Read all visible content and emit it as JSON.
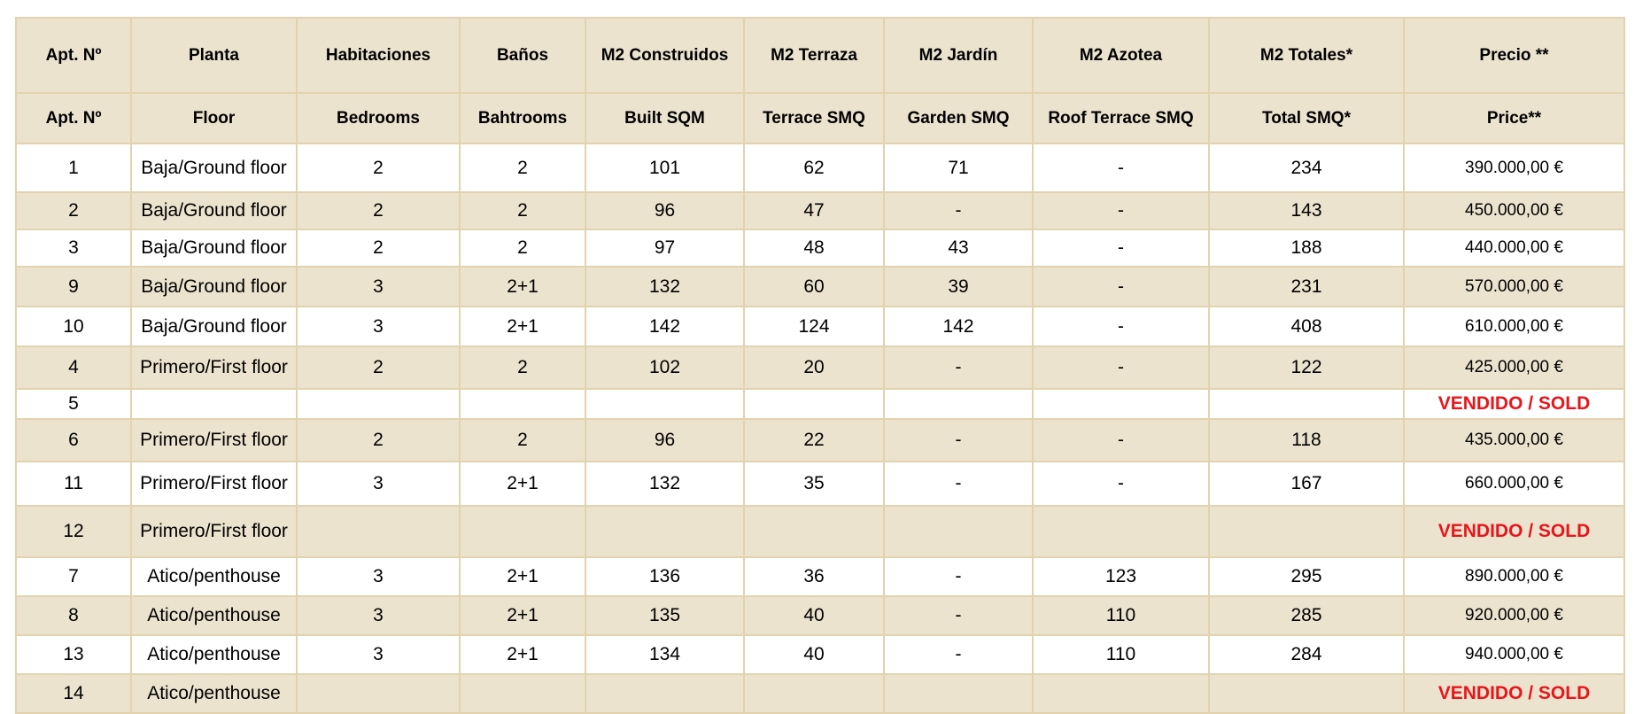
{
  "headers_es": [
    "Apt. Nº",
    "Planta",
    "Habitaciones",
    "Baños",
    "M2 Construidos",
    "M2 Terraza",
    "M2 Jardín",
    "M2 Azotea",
    "M2 Totales*",
    "Precio **"
  ],
  "headers_en": [
    "Apt. Nº",
    "Floor",
    "Bedrooms",
    "Bahtrooms",
    "Built SQM",
    "Terrace SMQ",
    "Garden SMQ",
    "Roof Terrace SMQ",
    "Total SMQ*",
    "Price**"
  ],
  "rows": [
    {
      "apt": "1",
      "floor": "Baja/Ground floor",
      "bedrooms": "2",
      "bathrooms": "2",
      "built": "101",
      "terrace": "62",
      "garden": "71",
      "roof": "-",
      "total": "234",
      "price": "390.000,00 €"
    },
    {
      "apt": "2",
      "floor": "Baja/Ground floor",
      "bedrooms": "2",
      "bathrooms": "2",
      "built": "96",
      "terrace": "47",
      "garden": "-",
      "roof": "-",
      "total": "143",
      "price": "450.000,00 €"
    },
    {
      "apt": "3",
      "floor": "Baja/Ground floor",
      "bedrooms": "2",
      "bathrooms": "2",
      "built": "97",
      "terrace": "48",
      "garden": "43",
      "roof": "-",
      "total": "188",
      "price": "440.000,00 €"
    },
    {
      "apt": "9",
      "floor": "Baja/Ground floor",
      "bedrooms": "3",
      "bathrooms": "2+1",
      "built": "132",
      "terrace": "60",
      "garden": "39",
      "roof": "-",
      "total": "231",
      "price": "570.000,00 €"
    },
    {
      "apt": "10",
      "floor": "Baja/Ground floor",
      "bedrooms": "3",
      "bathrooms": "2+1",
      "built": "142",
      "terrace": "124",
      "garden": "142",
      "roof": "-",
      "total": "408",
      "price": "610.000,00 €"
    },
    {
      "apt": "4",
      "floor": "Primero/First floor",
      "bedrooms": "2",
      "bathrooms": "2",
      "built": "102",
      "terrace": "20",
      "garden": "-",
      "roof": "-",
      "total": "122",
      "price": "425.000,00 €"
    },
    {
      "apt": "5",
      "floor": "",
      "bedrooms": "",
      "bathrooms": "",
      "built": "",
      "terrace": "",
      "garden": "",
      "roof": "",
      "total": "",
      "price": "VENDIDO / SOLD",
      "sold": true
    },
    {
      "apt": "6",
      "floor": "Primero/First floor",
      "bedrooms": "2",
      "bathrooms": "2",
      "built": "96",
      "terrace": "22",
      "garden": "-",
      "roof": "-",
      "total": "118",
      "price": "435.000,00 €"
    },
    {
      "apt": "11",
      "floor": "Primero/First floor",
      "bedrooms": "3",
      "bathrooms": "2+1",
      "built": "132",
      "terrace": "35",
      "garden": "-",
      "roof": "-",
      "total": "167",
      "price": "660.000,00 €"
    },
    {
      "apt": "12",
      "floor": "Primero/First floor",
      "bedrooms": "",
      "bathrooms": "",
      "built": "",
      "terrace": "",
      "garden": "",
      "roof": "",
      "total": "",
      "price": "VENDIDO / SOLD",
      "sold": true
    },
    {
      "apt": "7",
      "floor": "Atico/penthouse",
      "bedrooms": "3",
      "bathrooms": "2+1",
      "built": "136",
      "terrace": "36",
      "garden": "-",
      "roof": "123",
      "total": "295",
      "price": "890.000,00 €"
    },
    {
      "apt": "8",
      "floor": "Atico/penthouse",
      "bedrooms": "3",
      "bathrooms": "2+1",
      "built": "135",
      "terrace": "40",
      "garden": "-",
      "roof": "110",
      "total": "285",
      "price": "920.000,00 €"
    },
    {
      "apt": "13",
      "floor": "Atico/penthouse",
      "bedrooms": "3",
      "bathrooms": "2+1",
      "built": "134",
      "terrace": "40",
      "garden": "-",
      "roof": "110",
      "total": "284",
      "price": "940.000,00 €"
    },
    {
      "apt": "14",
      "floor": "Atico/penthouse",
      "bedrooms": "",
      "bathrooms": "",
      "built": "",
      "terrace": "",
      "garden": "",
      "roof": "",
      "total": "",
      "price": "VENDIDO / SOLD",
      "sold": true
    }
  ],
  "colors": {
    "header_bg": "#ece3cf",
    "border": "#e2d3ae",
    "sold": "#e8161b"
  }
}
